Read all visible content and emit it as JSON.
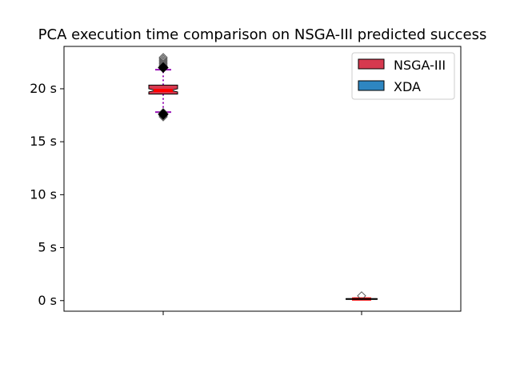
{
  "chart_data": {
    "type": "box",
    "title": "PCA execution time comparison on NSGA-III predicted success",
    "xlabel": "",
    "ylabel": "",
    "ylim": [
      -1.0,
      24.0
    ],
    "yticks": [
      0,
      5,
      10,
      15,
      20
    ],
    "ytick_labels": [
      "0 s",
      "5 s",
      "10 s",
      "15 s",
      "20 s"
    ],
    "categories": [
      "",
      ""
    ],
    "legend": {
      "placement": "top-right",
      "entries": [
        {
          "label": "NSGA-III",
          "color": "#d6394f"
        },
        {
          "label": "XDA",
          "color": "#2e86c1"
        }
      ]
    },
    "series": [
      {
        "name": "NSGA-III",
        "color": "#d6394f",
        "whisker_color": "#9b17b8",
        "median_color": "#ff0000",
        "q1": 19.5,
        "median": 19.85,
        "q3": 20.35,
        "whisker_low": 17.8,
        "whisker_high": 21.8,
        "notch_low": 19.7,
        "notch_high": 20.0,
        "mean": 19.85,
        "fliers_high": [
          22.0,
          22.1,
          22.2,
          22.35,
          22.5,
          22.65,
          22.8,
          22.95
        ],
        "fliers_low": [
          17.35,
          17.45,
          17.55,
          17.65,
          17.75
        ]
      },
      {
        "name": "XDA",
        "color": "#2e86c1",
        "whisker_color": "#000000",
        "median_color": "#ff0000",
        "q1": 0.12,
        "median": 0.15,
        "q3": 0.18,
        "whisker_low": 0.1,
        "whisker_high": 0.22,
        "notch_low": 0.14,
        "notch_high": 0.16,
        "mean": 0.15,
        "fliers_high": [
          0.45
        ],
        "fliers_low": []
      }
    ]
  }
}
